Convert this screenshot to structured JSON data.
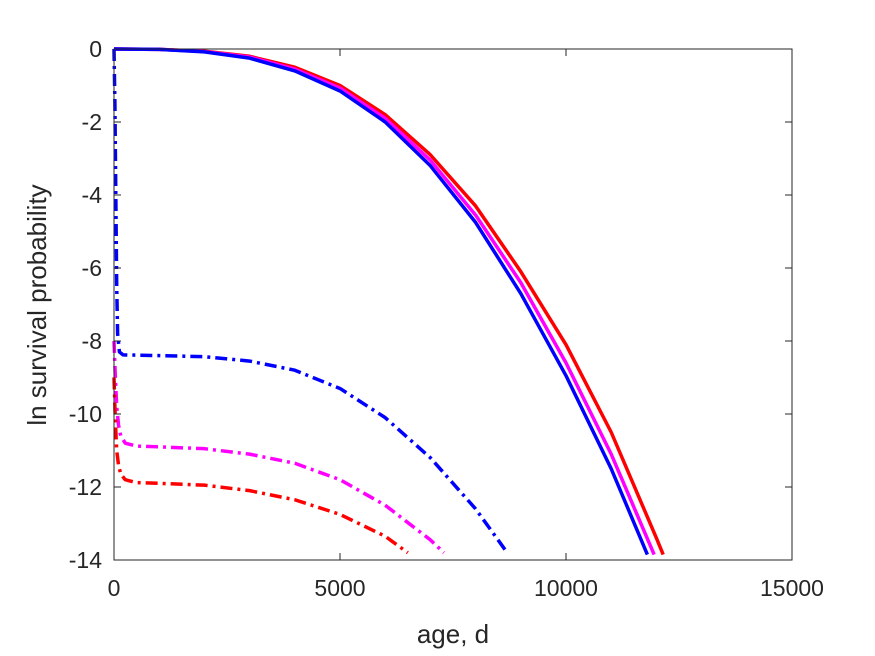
{
  "chart_data": {
    "type": "line",
    "title": "",
    "xlabel": "age, d",
    "ylabel": "ln survival probability",
    "xlim": [
      0,
      15000
    ],
    "ylim": [
      -14,
      0
    ],
    "xticks": [
      0,
      5000,
      10000,
      15000
    ],
    "yticks": [
      0,
      -2,
      -4,
      -6,
      -8,
      -10,
      -12,
      -14
    ],
    "xtick_labels": [
      "0",
      "5000",
      "10000",
      "15000"
    ],
    "ytick_labels": [
      "0",
      "-2",
      "-4",
      "-6",
      "-8",
      "-10",
      "-12",
      "-14"
    ],
    "grid": false,
    "legend": "none",
    "series": [
      {
        "color": "#ff0000",
        "style": "solid",
        "points": [
          [
            0,
            0
          ],
          [
            1000,
            -0.01
          ],
          [
            2000,
            -0.06
          ],
          [
            3000,
            -0.2
          ],
          [
            4000,
            -0.5
          ],
          [
            5000,
            -1.0
          ],
          [
            6000,
            -1.8
          ],
          [
            7000,
            -2.9
          ],
          [
            8000,
            -4.3
          ],
          [
            9000,
            -6.1
          ],
          [
            10000,
            -8.1
          ],
          [
            11000,
            -10.5
          ],
          [
            12000,
            -13.4
          ],
          [
            12150,
            -13.85
          ]
        ]
      },
      {
        "color": "#ff00ff",
        "style": "solid",
        "points": [
          [
            0,
            0
          ],
          [
            1000,
            -0.01
          ],
          [
            2000,
            -0.07
          ],
          [
            3000,
            -0.22
          ],
          [
            4000,
            -0.55
          ],
          [
            5000,
            -1.07
          ],
          [
            6000,
            -1.9
          ],
          [
            7000,
            -3.05
          ],
          [
            8000,
            -4.55
          ],
          [
            9000,
            -6.4
          ],
          [
            10000,
            -8.6
          ],
          [
            11000,
            -11.1
          ],
          [
            11950,
            -13.85
          ]
        ]
      },
      {
        "color": "#0000ff",
        "style": "solid",
        "points": [
          [
            0,
            0
          ],
          [
            1000,
            -0.01
          ],
          [
            2000,
            -0.08
          ],
          [
            3000,
            -0.25
          ],
          [
            4000,
            -0.6
          ],
          [
            5000,
            -1.15
          ],
          [
            6000,
            -2.0
          ],
          [
            7000,
            -3.2
          ],
          [
            8000,
            -4.75
          ],
          [
            9000,
            -6.7
          ],
          [
            10000,
            -8.95
          ],
          [
            11000,
            -11.5
          ],
          [
            11800,
            -13.85
          ]
        ]
      },
      {
        "color": "#0000ff",
        "style": "dashdot",
        "points": [
          [
            0,
            0
          ],
          [
            20,
            -1.5
          ],
          [
            40,
            -4
          ],
          [
            60,
            -6.5
          ],
          [
            80,
            -7.8
          ],
          [
            120,
            -8.3
          ],
          [
            200,
            -8.38
          ],
          [
            1000,
            -8.4
          ],
          [
            2000,
            -8.43
          ],
          [
            3000,
            -8.55
          ],
          [
            4000,
            -8.8
          ],
          [
            5000,
            -9.3
          ],
          [
            6000,
            -10.1
          ],
          [
            7000,
            -11.2
          ],
          [
            8000,
            -12.6
          ],
          [
            8700,
            -13.8
          ]
        ]
      },
      {
        "color": "#ff00ff",
        "style": "dashdot",
        "points": [
          [
            0,
            -8
          ],
          [
            30,
            -9
          ],
          [
            60,
            -9.8
          ],
          [
            100,
            -10.3
          ],
          [
            150,
            -10.6
          ],
          [
            250,
            -10.8
          ],
          [
            500,
            -10.88
          ],
          [
            1000,
            -10.9
          ],
          [
            2000,
            -10.95
          ],
          [
            3000,
            -11.1
          ],
          [
            4000,
            -11.35
          ],
          [
            5000,
            -11.8
          ],
          [
            6000,
            -12.5
          ],
          [
            7000,
            -13.45
          ],
          [
            7300,
            -13.8
          ]
        ]
      },
      {
        "color": "#ff0000",
        "style": "dashdot",
        "points": [
          [
            0,
            -9
          ],
          [
            30,
            -10.2
          ],
          [
            60,
            -11
          ],
          [
            100,
            -11.4
          ],
          [
            150,
            -11.65
          ],
          [
            250,
            -11.8
          ],
          [
            500,
            -11.88
          ],
          [
            1000,
            -11.9
          ],
          [
            2000,
            -11.95
          ],
          [
            3000,
            -12.1
          ],
          [
            4000,
            -12.35
          ],
          [
            5000,
            -12.75
          ],
          [
            6000,
            -13.35
          ],
          [
            6500,
            -13.8
          ]
        ]
      }
    ]
  }
}
